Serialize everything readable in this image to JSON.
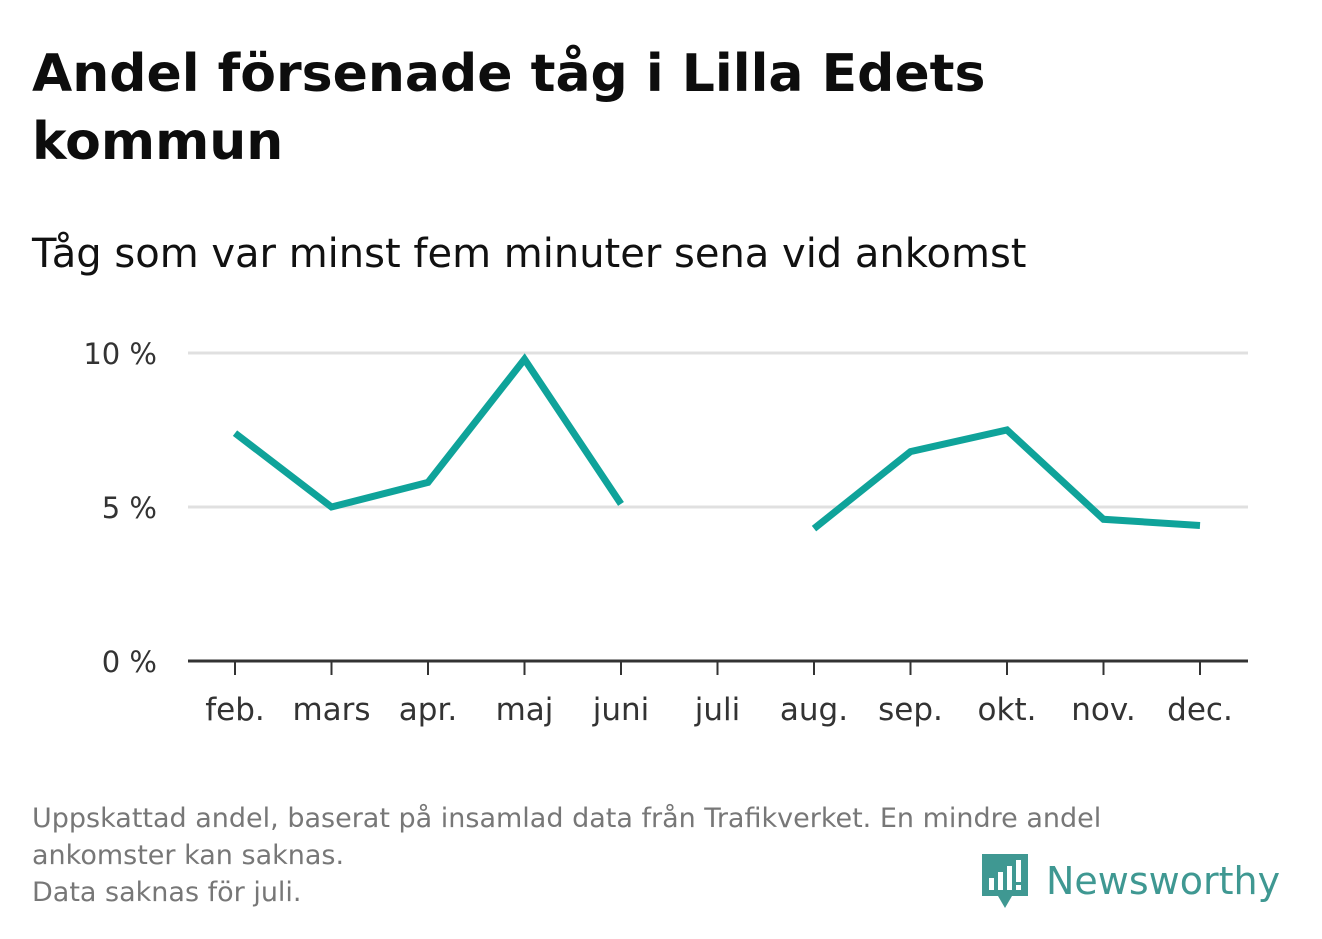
{
  "title": "Andel försenade tåg i Lilla Edets kommun",
  "subtitle": "Tåg som var minst fem minuter sena vid ankomst",
  "footnote": {
    "line1": "Uppskattad andel, baserat på insamlad data från Trafikverket. En mindre andel",
    "line2": "ankomster kan saknas.",
    "line3": "Data saknas för juli."
  },
  "brand": {
    "name": "Newsworthy",
    "color": "#3f9892",
    "icon": "newsworthy-logo-icon"
  },
  "colors": {
    "line": "#0fa39a",
    "grid": "#e0e0e0",
    "axis": "#333333"
  },
  "chart_data": {
    "type": "line",
    "categories": [
      "feb.",
      "mars",
      "apr.",
      "maj",
      "juni",
      "juli",
      "aug.",
      "sep.",
      "okt.",
      "nov.",
      "dec."
    ],
    "series": [
      {
        "values": [
          7.4,
          5.0,
          5.8,
          9.8,
          5.1,
          null,
          4.3,
          6.8,
          7.5,
          4.6,
          4.4
        ]
      }
    ],
    "y_ticks": [
      0,
      5,
      10
    ],
    "y_tick_labels": [
      "0 %",
      "5 %",
      "10 %"
    ],
    "ylim": [
      0,
      10
    ],
    "grid": true,
    "legend": "none"
  }
}
